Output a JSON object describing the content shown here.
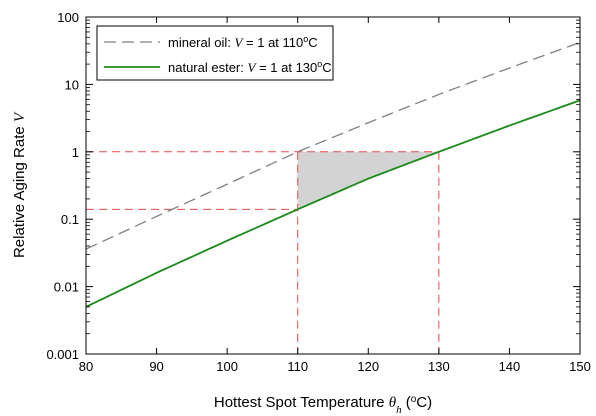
{
  "chart_data": {
    "type": "line",
    "xlabel": {
      "prefix": "Hottest Spot Temperature ",
      "symbol": "θ",
      "subscript": "h",
      "suffix_open": " (",
      "degree": "o",
      "suffix_close": "C)"
    },
    "ylabel": {
      "prefix": "Relative Aging Rate ",
      "symbol": "V"
    },
    "xlim": [
      80,
      150
    ],
    "ylim": [
      0.001,
      100
    ],
    "yscale": "log",
    "grid": false,
    "legend_position": "top-left",
    "x_ticks": [
      "80",
      "90",
      "100",
      "110",
      "120",
      "130",
      "140",
      "150"
    ],
    "y_ticks": [
      "0.001",
      "0.01",
      "0.1",
      "1",
      "10",
      "100"
    ],
    "series": [
      {
        "name": "mineral oil",
        "legend": {
          "prefix": "mineral oil: ",
          "symbol": "V",
          "middle": " = 1 at 110",
          "degree": "o",
          "suffix": "C"
        },
        "color": "#808080",
        "style": "dashed",
        "x": [
          80,
          90,
          100,
          110,
          120,
          130,
          140,
          150
        ],
        "y": [
          0.036,
          0.11,
          0.33,
          1.0,
          2.7,
          7.1,
          17.5,
          42
        ]
      },
      {
        "name": "natural ester",
        "legend": {
          "prefix": "natural ester: ",
          "symbol": "V",
          "middle": " = 1 at 130",
          "degree": "o",
          "suffix": "C"
        },
        "color": "#1a8a1a",
        "style": "solid",
        "x": [
          80,
          90,
          100,
          110,
          120,
          130,
          140,
          150
        ],
        "y": [
          0.005,
          0.016,
          0.048,
          0.14,
          0.4,
          1.0,
          2.45,
          5.8
        ]
      }
    ],
    "annotations": {
      "reference_lines_color": "#e84a4a",
      "shaded_fill": "#d3d3d3",
      "horizontal_refs": [
        1.0,
        0.14
      ],
      "vertical_refs": [
        110,
        130
      ],
      "shaded_region": {
        "x_from": 110,
        "x_to": 130,
        "upper_y": 1.0,
        "lower_series": "natural ester"
      }
    }
  }
}
